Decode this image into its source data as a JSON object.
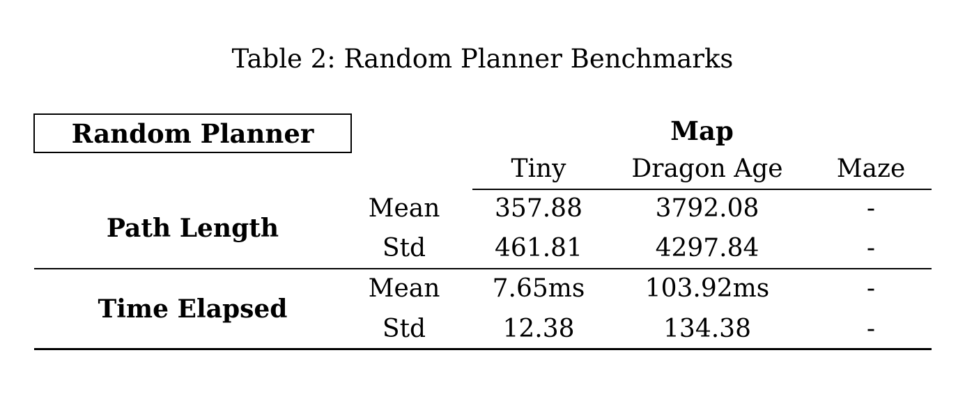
{
  "table": {
    "caption": "Table 2: Random Planner Benchmarks",
    "corner_label": "Random Planner",
    "group_header": "Map",
    "columns": [
      "Tiny",
      "Dragon Age",
      "Maze"
    ],
    "stat_labels": [
      "Mean",
      "Std"
    ],
    "row_groups": [
      {
        "label": "Path Length",
        "rows": [
          {
            "stat": "Mean",
            "values": [
              "357.88",
              "3792.08",
              "-"
            ]
          },
          {
            "stat": "Std",
            "values": [
              "461.81",
              "4297.84",
              "-"
            ]
          }
        ]
      },
      {
        "label": "Time Elapsed",
        "rows": [
          {
            "stat": "Mean",
            "values": [
              "7.65ms",
              "103.92ms",
              "-"
            ]
          },
          {
            "stat": "Std",
            "values": [
              "12.38",
              "134.38",
              "-"
            ]
          }
        ]
      }
    ]
  },
  "colors": {
    "text": "#000000",
    "background": "#ffffff",
    "rule": "#000000"
  }
}
